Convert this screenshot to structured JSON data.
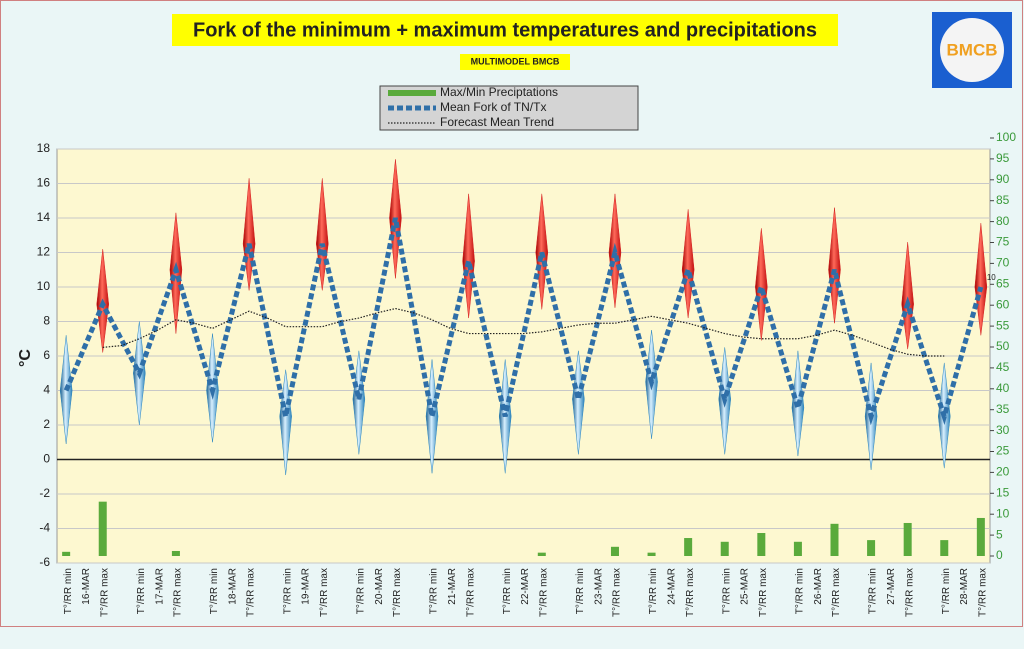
{
  "logo": {
    "text": "BMCB"
  },
  "chart_data": {
    "type": "fork",
    "title": "Fork of the minimum + maximum temperatures and precipitations",
    "subtitle": "MULTIMODEL BMCB",
    "y_label": "°C",
    "categories": [
      "T°/RR min",
      "16-MAR",
      "T°/RR max",
      null,
      "T°/RR min",
      "17-MAR",
      "T°/RR max",
      null,
      "T°/RR min",
      "18-MAR",
      "T°/RR max",
      null,
      "T°/RR min",
      "19-MAR",
      "T°/RR max",
      null,
      "T°/RR min",
      "20-MAR",
      "T°/RR max",
      null,
      "T°/RR min",
      "21-MAR",
      "T°/RR max",
      null,
      "T°/RR min",
      "22-MAR",
      "T°/RR max",
      null,
      "T°/RR min",
      "23-MAR",
      "T°/RR max",
      null,
      "T°/RR min",
      "24-MAR",
      "T°/RR max",
      null,
      "T°/RR min",
      "25-MAR",
      "T°/RR max",
      null,
      "T°/RR min",
      "26-MAR",
      "T°/RR max",
      null,
      "T°/RR min",
      "27-MAR",
      "T°/RR max",
      null,
      "T°/RR min",
      "28-MAR",
      "T°/RR max"
    ],
    "series": [
      {
        "name": "Max/Min Preciptations",
        "type": "bar",
        "axis": "y2",
        "color": "#5aaa3c",
        "values": [
          1,
          null,
          13,
          null,
          0,
          null,
          1.2,
          null,
          0,
          null,
          0,
          null,
          0,
          null,
          0,
          null,
          0,
          null,
          0,
          null,
          0,
          null,
          0,
          null,
          0,
          null,
          0.8,
          null,
          0,
          null,
          2.2,
          null,
          0.8,
          null,
          4.3,
          null,
          3.4,
          null,
          5.5,
          null,
          3.4,
          null,
          7.7,
          null,
          3.8,
          null,
          7.9,
          null,
          3.8,
          null,
          9.1
        ]
      },
      {
        "name": "Mean Fork of TN/Tx",
        "type": "line",
        "style": "thick-dash",
        "color": "#2f6fa8",
        "values": [
          4,
          6.5,
          9,
          7,
          5,
          8,
          11,
          7.5,
          4,
          8.25,
          12.5,
          7.5,
          2.5,
          7.5,
          12.5,
          8,
          3.5,
          8.75,
          14,
          8.25,
          2.5,
          7,
          11.5,
          7,
          2.5,
          7.25,
          12,
          7.75,
          3.5,
          7.75,
          12,
          8.25,
          4.5,
          7.75,
          11,
          7.25,
          3.5,
          6.75,
          10,
          6.5,
          3,
          7,
          11,
          6.75,
          2.5,
          5.75,
          9,
          5.75,
          2.5,
          6.25,
          10
        ]
      },
      {
        "name": "Forecast Mean Trend",
        "type": "line",
        "style": "dotted",
        "color": "#222222",
        "values": [
          null,
          null,
          6.5,
          6.6,
          7.0,
          7.5,
          8.1,
          7.9,
          7.6,
          8.1,
          8.6,
          8.2,
          7.7,
          7.7,
          7.7,
          8.0,
          8.2,
          8.5,
          8.75,
          8.5,
          8.1,
          7.6,
          7.3,
          7.3,
          7.3,
          7.3,
          7.4,
          7.6,
          7.8,
          7.9,
          7.9,
          8.1,
          8.3,
          8.1,
          7.9,
          7.6,
          7.3,
          7.1,
          7.0,
          7.0,
          7.0,
          7.2,
          7.5,
          7.2,
          6.8,
          6.4,
          6.1,
          6.0,
          6.0,
          null,
          null
        ]
      }
    ],
    "tmin_range": {
      "color": "#2a86c0",
      "high": [
        7.2,
        8,
        7.3,
        5.2,
        6.3,
        5.8,
        5.8,
        6.3,
        7.5,
        6.5,
        6.3,
        5.6,
        5.6
      ],
      "low": [
        0.9,
        2,
        1,
        -0.9,
        0.3,
        -0.8,
        -0.8,
        0.3,
        1.2,
        0.3,
        0.2,
        -0.6,
        -0.5
      ]
    },
    "tmax_range": {
      "color": "#d42020",
      "high": [
        12.2,
        14.3,
        16.3,
        16.3,
        17.4,
        15.4,
        15.4,
        15.4,
        14.5,
        13.4,
        14.6,
        12.6,
        13.7
      ],
      "low": [
        6.2,
        7.3,
        9.8,
        9.8,
        10.5,
        8.2,
        8.7,
        8.8,
        8.2,
        6.9,
        7.9,
        6.4,
        7.2
      ]
    },
    "annotations": [
      {
        "text": "10"
      }
    ],
    "ylim": [
      -6,
      18
    ],
    "yticks": [
      -6,
      -4,
      -2,
      0,
      2,
      4,
      6,
      8,
      10,
      12,
      14,
      16,
      18
    ],
    "y2lim": [
      0,
      100
    ],
    "y2ticks": [
      0,
      5,
      10,
      15,
      20,
      25,
      30,
      35,
      40,
      45,
      50,
      55,
      60,
      65,
      70,
      75,
      80,
      85,
      90,
      95,
      100
    ],
    "grid": true
  }
}
